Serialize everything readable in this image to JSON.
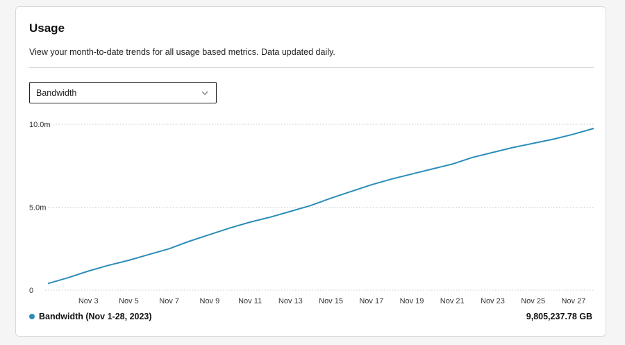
{
  "card": {
    "title": "Usage",
    "description": "View your month-to-date trends for all usage based metrics. Data updated daily."
  },
  "metric_select": {
    "value": "Bandwidth",
    "icon": "chevron-down-icon"
  },
  "legend": {
    "label": "Bandwidth (Nov 1-28, 2023)",
    "color": "#2b8db8",
    "total": "9,805,237.78 GB"
  },
  "chart_data": {
    "type": "line",
    "y_ticks": [
      "0",
      "5.0m",
      "10.0m"
    ],
    "ylim": [
      0,
      10000000
    ],
    "x_tick_labels": [
      "Nov 3",
      "Nov 5",
      "Nov 7",
      "Nov 9",
      "Nov 11",
      "Nov 13",
      "Nov 15",
      "Nov 17",
      "Nov 19",
      "Nov 21",
      "Nov 23",
      "Nov 25",
      "Nov 27"
    ],
    "grid": "horizontal dotted",
    "series": [
      {
        "name": "Bandwidth (Nov 1-28, 2023)",
        "color": "#2b8db8",
        "x": [
          "Nov 1",
          "Nov 2",
          "Nov 3",
          "Nov 4",
          "Nov 5",
          "Nov 6",
          "Nov 7",
          "Nov 8",
          "Nov 9",
          "Nov 10",
          "Nov 11",
          "Nov 12",
          "Nov 13",
          "Nov 14",
          "Nov 15",
          "Nov 16",
          "Nov 17",
          "Nov 18",
          "Nov 19",
          "Nov 20",
          "Nov 21",
          "Nov 22",
          "Nov 23",
          "Nov 24",
          "Nov 25",
          "Nov 26",
          "Nov 27",
          "Nov 28"
        ],
        "values": [
          400000,
          750000,
          1150000,
          1500000,
          1800000,
          2150000,
          2500000,
          2950000,
          3350000,
          3750000,
          4100000,
          4400000,
          4750000,
          5100000,
          5550000,
          5950000,
          6350000,
          6700000,
          7000000,
          7300000,
          7600000,
          8000000,
          8300000,
          8600000,
          8850000,
          9100000,
          9400000,
          9750000
        ]
      }
    ]
  }
}
